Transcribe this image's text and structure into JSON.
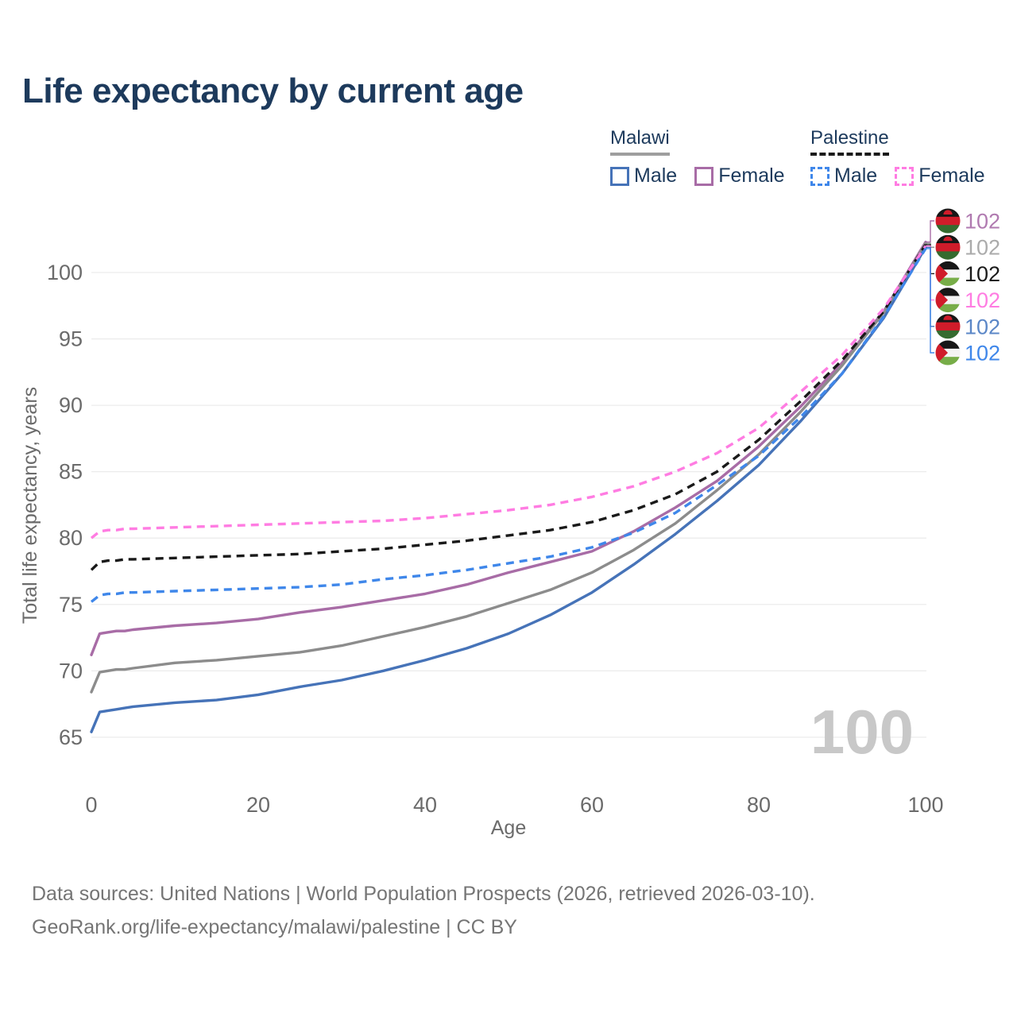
{
  "title": "Life expectancy by current age",
  "legend": {
    "groups": [
      {
        "country": "Malawi",
        "line_style": "solid",
        "underline_color": "#9e9e9e",
        "entries": [
          {
            "label": "Male",
            "color": "#4673b8",
            "dashed": false
          },
          {
            "label": "Female",
            "color": "#a86ca6",
            "dashed": false
          }
        ]
      },
      {
        "country": "Palestine",
        "line_style": "dashed",
        "underline_color": "#1a1a1a",
        "entries": [
          {
            "label": "Male",
            "color": "#3f87ea",
            "dashed": true
          },
          {
            "label": "Female",
            "color": "#ff7ce2",
            "dashed": true
          }
        ]
      }
    ]
  },
  "chart_data": {
    "type": "line",
    "title": "Life expectancy by current age",
    "xlabel": "Age",
    "ylabel": "Total life expectancy, years",
    "xlim": [
      0,
      100
    ],
    "ylim": [
      63.5,
      103
    ],
    "x_ticks": [
      "0",
      "20",
      "40",
      "60",
      "80",
      "100"
    ],
    "y_ticks": [
      "65",
      "70",
      "75",
      "80",
      "85",
      "90",
      "95",
      "100"
    ],
    "grid": "horizontal-only",
    "legend_position": "top-right",
    "watermark": "100",
    "x": [
      0,
      1,
      2,
      3,
      4,
      5,
      10,
      15,
      20,
      25,
      30,
      35,
      40,
      45,
      50,
      55,
      60,
      65,
      70,
      75,
      80,
      85,
      90,
      95,
      100
    ],
    "series": [
      {
        "name": "Malawi Female",
        "country": "Malawi",
        "sex": "Female",
        "flag": "malawi",
        "color": "#a86ca6",
        "dashed": false,
        "end_label": "102",
        "label_color": "#b07ab0",
        "values": [
          71.2,
          72.8,
          72.9,
          73.0,
          73.0,
          73.1,
          73.4,
          73.6,
          73.9,
          74.4,
          74.8,
          75.3,
          75.8,
          76.5,
          77.4,
          78.2,
          79.0,
          80.5,
          82.3,
          84.3,
          86.9,
          89.9,
          93.2,
          97.1,
          102.3
        ]
      },
      {
        "name": "Malawi",
        "country": "Malawi",
        "sex": "Both sexes",
        "flag": "malawi",
        "color": "#8c8c8c",
        "dashed": false,
        "end_label": "102",
        "label_color": "#ababab",
        "values": [
          68.4,
          69.9,
          70.0,
          70.1,
          70.1,
          70.2,
          70.6,
          70.8,
          71.1,
          71.4,
          71.9,
          72.6,
          73.3,
          74.1,
          75.1,
          76.1,
          77.4,
          79.1,
          81.1,
          83.6,
          86.3,
          89.5,
          93.0,
          97.0,
          102.2
        ]
      },
      {
        "name": "Palestine",
        "country": "Palestine",
        "sex": "Both sexes",
        "flag": "palestine",
        "color": "#1a1a1a",
        "dashed": true,
        "end_label": "102",
        "label_color": "#1a1a1a",
        "values": [
          77.6,
          78.2,
          78.3,
          78.3,
          78.4,
          78.4,
          78.5,
          78.6,
          78.7,
          78.8,
          79.0,
          79.2,
          79.5,
          79.8,
          80.2,
          80.6,
          81.2,
          82.1,
          83.3,
          85.0,
          87.4,
          90.3,
          93.4,
          97.1,
          102.1
        ]
      },
      {
        "name": "Palestine Female",
        "country": "Palestine",
        "sex": "Female",
        "flag": "palestine",
        "color": "#ff7ce2",
        "dashed": true,
        "end_label": "102",
        "label_color": "#ff7ce2",
        "values": [
          80.0,
          80.5,
          80.6,
          80.6,
          80.7,
          80.7,
          80.8,
          80.9,
          81.0,
          81.1,
          81.2,
          81.3,
          81.5,
          81.8,
          82.1,
          82.5,
          83.1,
          83.9,
          85.0,
          86.4,
          88.3,
          91.0,
          93.8,
          97.3,
          102.0
        ]
      },
      {
        "name": "Malawi Male",
        "country": "Malawi",
        "sex": "Male",
        "flag": "malawi",
        "color": "#4673b8",
        "dashed": false,
        "end_label": "102",
        "label_color": "#5b87c7",
        "values": [
          65.4,
          66.9,
          67.0,
          67.1,
          67.2,
          67.3,
          67.6,
          67.8,
          68.2,
          68.8,
          69.3,
          70.0,
          70.8,
          71.7,
          72.8,
          74.2,
          75.9,
          78.0,
          80.3,
          82.8,
          85.5,
          88.8,
          92.4,
          96.6,
          101.9
        ]
      },
      {
        "name": "Palestine Male",
        "country": "Palestine",
        "sex": "Male",
        "flag": "palestine",
        "color": "#3f87ea",
        "dashed": true,
        "end_label": "102",
        "label_color": "#3f87ea",
        "values": [
          75.2,
          75.7,
          75.8,
          75.8,
          75.9,
          75.9,
          76.0,
          76.1,
          76.2,
          76.3,
          76.5,
          76.9,
          77.2,
          77.6,
          78.1,
          78.6,
          79.3,
          80.4,
          81.9,
          84.0,
          86.2,
          89.1,
          92.4,
          96.7,
          101.8
        ]
      }
    ]
  },
  "footer": {
    "line1": "Data sources: United Nations | World Population Prospects (2026, retrieved 2026-03-10).",
    "line2": "GeoRank.org/life-expectancy/malawi/palestine | CC BY"
  }
}
